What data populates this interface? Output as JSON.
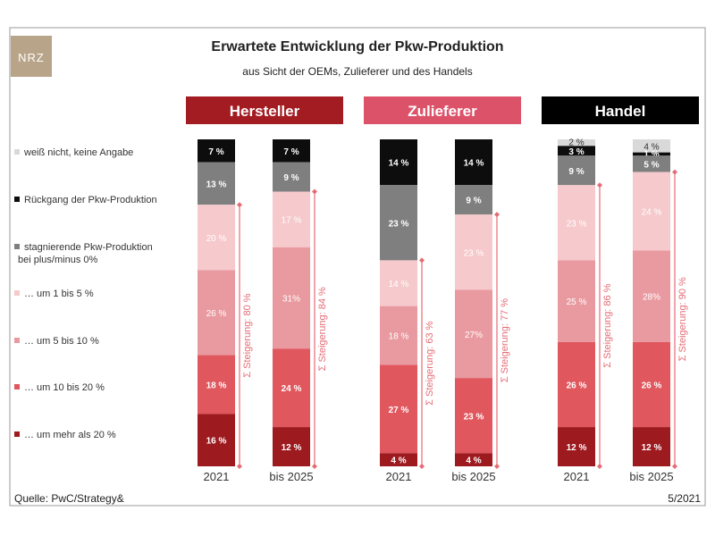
{
  "logo_text": "NRZ",
  "source": "Quelle: PwC/Strategy&",
  "date": "5/2021",
  "colors": {
    "dunno": "#d9d9d9",
    "decline": "#0d0d0d",
    "stagnate": "#7f7f7f",
    "up1_5": "#f6c9cc",
    "up5_10": "#e99aa0",
    "up10_20": "#e0575e",
    "up20": "#9d1a1f",
    "hersteller": "#a31c22",
    "zulieferer": "#dc5269",
    "handel": "#000000",
    "bracket": "#e56b74"
  },
  "chart_data": {
    "type": "bar",
    "stacked": true,
    "title": "Erwartete Entwicklung der Pkw-Produktion",
    "subtitle": "aus Sicht der OEMs, Zulieferer und des Handels",
    "legend_position": "left",
    "legend": [
      {
        "key": "dunno",
        "label": "weiß nicht, keine Angabe"
      },
      {
        "key": "decline",
        "label": "Rückgang der Pkw-Produktion"
      },
      {
        "key": "stagnate",
        "label": "stagnierende Pkw-Produktion",
        "label2": "bei plus/minus 0%"
      },
      {
        "key": "up1_5",
        "label": "… um 1 bis 5 %"
      },
      {
        "key": "up5_10",
        "label": "… um 5 bis 10 %"
      },
      {
        "key": "up10_20",
        "label": "… um 10 bis 20 %"
      },
      {
        "key": "up20",
        "label": "… um mehr als 20 %"
      }
    ],
    "groups": [
      {
        "name": "Hersteller",
        "header_color": "#a31c22",
        "bars": [
          {
            "category": "2021",
            "values": {
              "dunno": 0,
              "decline": 7,
              "stagnate": 13,
              "up1_5": 20,
              "up5_10": 26,
              "up10_20": 18,
              "up20": 16
            },
            "labels": {
              "decline": "7 %",
              "stagnate": "13 %",
              "up1_5": "20 %",
              "up5_10": "26 %",
              "up10_20": "18 %",
              "up20": "16 %"
            },
            "increase": "Σ Steigerung: 80 %"
          },
          {
            "category": "bis 2025",
            "values": {
              "dunno": 0,
              "decline": 7,
              "stagnate": 9,
              "up1_5": 17,
              "up5_10": 31,
              "up10_20": 24,
              "up20": 12
            },
            "labels": {
              "decline": "7 %",
              "stagnate": "9 %",
              "up1_5": "17 %",
              "up5_10": "31%",
              "up10_20": "24 %",
              "up20": "12 %"
            },
            "increase": "Σ Steigerung: 84 %"
          }
        ]
      },
      {
        "name": "Zulieferer",
        "header_color": "#dc5269",
        "bars": [
          {
            "category": "2021",
            "values": {
              "dunno": 0,
              "decline": 14,
              "stagnate": 23,
              "up1_5": 14,
              "up5_10": 18,
              "up10_20": 27,
              "up20": 4
            },
            "labels": {
              "decline": "14 %",
              "stagnate": "23 %",
              "up1_5": "14 %",
              "up5_10": "18 %",
              "up10_20": "27 %",
              "up20": "4 %"
            },
            "increase": "Σ Steigerung: 63 %"
          },
          {
            "category": "bis 2025",
            "values": {
              "dunno": 0,
              "decline": 14,
              "stagnate": 9,
              "up1_5": 23,
              "up5_10": 27,
              "up10_20": 23,
              "up20": 4
            },
            "labels": {
              "decline": "14 %",
              "stagnate": "9 %",
              "up1_5": "23 %",
              "up5_10": "27%",
              "up10_20": "23 %",
              "up20": "4 %"
            },
            "increase": "Σ Steigerung: 77 %"
          }
        ]
      },
      {
        "name": "Handel",
        "header_color": "#000000",
        "bars": [
          {
            "category": "2021",
            "values": {
              "dunno": 2,
              "decline": 3,
              "stagnate": 9,
              "up1_5": 23,
              "up5_10": 25,
              "up10_20": 26,
              "up20": 12
            },
            "labels": {
              "dunno": "2 %",
              "decline": "3 %",
              "stagnate": "9 %",
              "up1_5": "23 %",
              "up5_10": "25 %",
              "up10_20": "26 %",
              "up20": "12 %"
            },
            "increase": "Σ Steigerung: 86 %"
          },
          {
            "category": "bis 2025",
            "values": {
              "dunno": 4,
              "decline": 1,
              "stagnate": 5,
              "up1_5": 24,
              "up5_10": 28,
              "up10_20": 26,
              "up20": 12
            },
            "labels": {
              "dunno": "4 %",
              "decline": "1 %",
              "stagnate": "5 %",
              "up1_5": "24 %",
              "up5_10": "28%",
              "up10_20": "26 %",
              "up20": "12 %"
            },
            "increase": "Σ Steigerung: 90 %"
          }
        ]
      }
    ]
  }
}
